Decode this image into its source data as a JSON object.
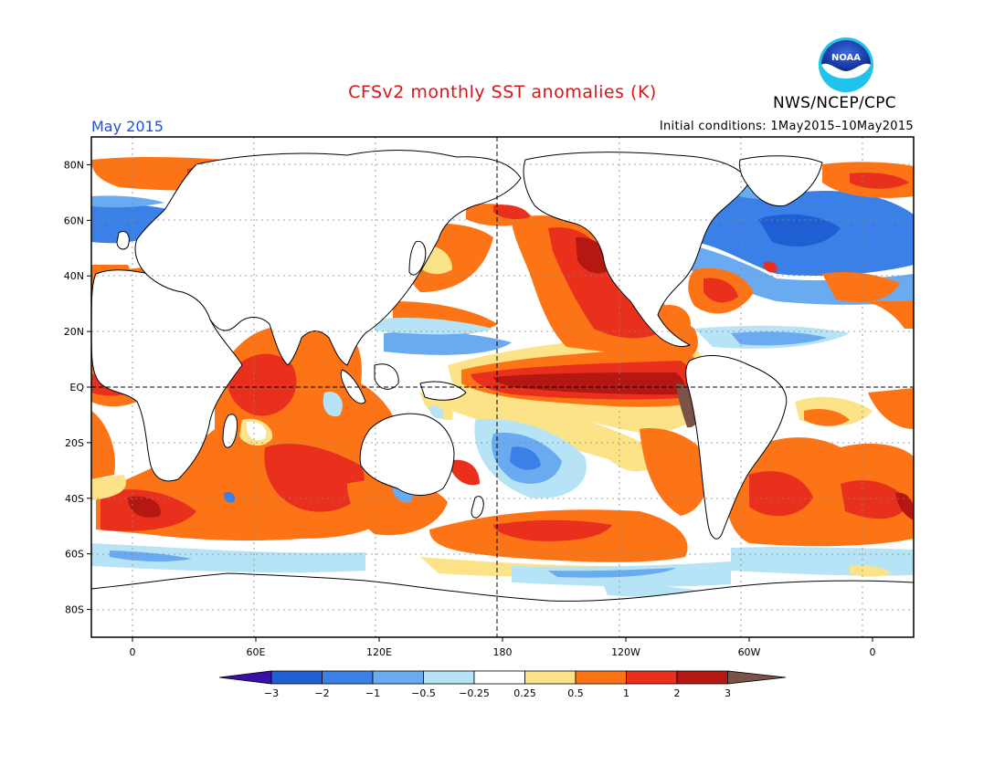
{
  "title": "CFSv2 monthly SST anomalies (K)",
  "organization": "NWS/NCEP/CPC",
  "logo_text": "NOAA",
  "period": "May 2015",
  "initial_conditions": "Initial conditions: 1May2015–10May2015",
  "map": {
    "projection": "equirectangular",
    "lon_range": [
      -20,
      380
    ],
    "lat_range": [
      -90,
      90
    ],
    "lat_labels": [
      "80N",
      "60N",
      "40N",
      "20N",
      "EQ",
      "20S",
      "40S",
      "60S",
      "80S"
    ],
    "lon_labels": [
      "0",
      "60E",
      "120E",
      "180",
      "120W",
      "60W",
      "0"
    ],
    "gridlines": "dotted every 20 degrees",
    "reference_lines": [
      "equator (dashed)",
      "180 meridian (dashed)"
    ]
  },
  "colorbar": {
    "labels": [
      "−3",
      "−2",
      "−1",
      "−0.5",
      "−0.25",
      "0.25",
      "0.5",
      "1",
      "2",
      "3"
    ],
    "colors": [
      "#3b0fa8",
      "#1f5fd4",
      "#3a80e6",
      "#69aaf0",
      "#b6e4f6",
      "#ffffff",
      "#fde387",
      "#fd7417",
      "#e8301d",
      "#b51713",
      "#7a5248"
    ]
  }
}
